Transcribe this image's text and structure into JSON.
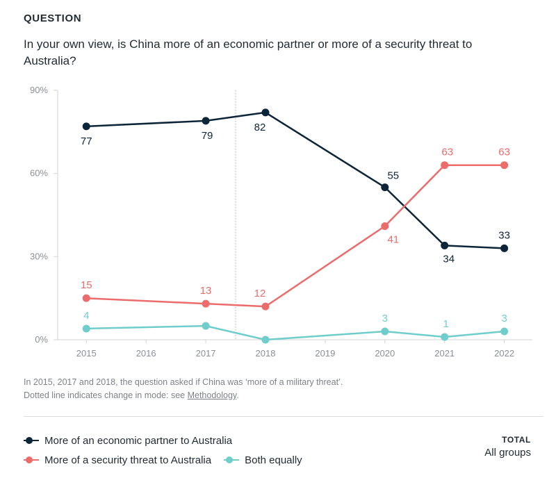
{
  "header": {
    "label": "QUESTION",
    "question": "In your own view, is China more of an economic partner or more of a security threat to Australia?"
  },
  "chart_data": {
    "type": "line",
    "x": [
      2015,
      2016,
      2017,
      2018,
      2019,
      2020,
      2021,
      2022
    ],
    "xticks": [
      "2015",
      "2016",
      "2017",
      "2018",
      "2019",
      "2020",
      "2021",
      "2022"
    ],
    "yticks": [
      "0%",
      "30%",
      "60%",
      "90%"
    ],
    "ylim": [
      0,
      90
    ],
    "mode_change_between": [
      2017,
      2018
    ],
    "series": [
      {
        "name": "More of an economic partner to Australia",
        "color": "#0d2538",
        "points": [
          [
            2015,
            77
          ],
          [
            2017,
            79
          ],
          [
            2018,
            82
          ],
          [
            2020,
            55
          ],
          [
            2021,
            34
          ],
          [
            2022,
            33
          ]
        ],
        "labels": [
          "77",
          "79",
          "82",
          "55",
          "34",
          "33"
        ]
      },
      {
        "name": "More of a security threat to Australia",
        "color": "#ec6b6b",
        "points": [
          [
            2015,
            15
          ],
          [
            2017,
            13
          ],
          [
            2018,
            12
          ],
          [
            2020,
            41
          ],
          [
            2021,
            63
          ],
          [
            2022,
            63
          ]
        ],
        "labels": [
          "15",
          "13",
          "12",
          "41",
          "63",
          "63"
        ]
      },
      {
        "name": "Both equally",
        "color": "#6fcdcc",
        "points": [
          [
            2015,
            4
          ],
          [
            2017,
            5
          ],
          [
            2018,
            0
          ],
          [
            2020,
            3
          ],
          [
            2021,
            1
          ],
          [
            2022,
            3
          ]
        ],
        "labels": [
          "4",
          "",
          "",
          "3",
          "1",
          "3"
        ]
      }
    ]
  },
  "notes": {
    "line1": "In 2015, 2017 and 2018, the question asked if China was ‘more of a military threat’.",
    "line2_prefix": "Dotted line indicates change in mode: see ",
    "line2_link": "Methodology",
    "line2_suffix": "."
  },
  "legend": {
    "economic": "More of an economic partner to Australia",
    "security": "More of a security threat to Australia",
    "both": "Both equally"
  },
  "total": {
    "title": "TOTAL",
    "value": "All groups"
  }
}
